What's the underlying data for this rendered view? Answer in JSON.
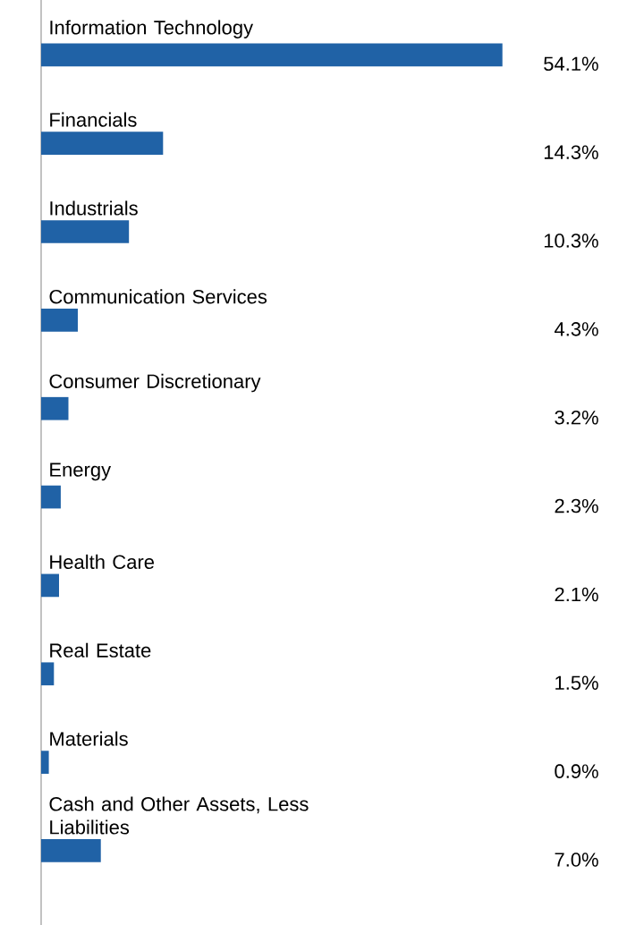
{
  "chart_data": {
    "type": "bar",
    "orientation": "horizontal",
    "categories": [
      "Information Technology",
      "Financials",
      "Industrials",
      "Communication Services",
      "Consumer Discretionary",
      "Energy",
      "Health Care",
      "Real Estate",
      "Materials",
      "Cash and Other Assets, Less Liabilities"
    ],
    "values": [
      54.1,
      14.3,
      10.3,
      4.3,
      3.2,
      2.3,
      2.1,
      1.5,
      0.9,
      7.0
    ],
    "value_labels": [
      "54.1%",
      "14.3%",
      "10.3%",
      "4.3%",
      "3.2%",
      "2.3%",
      "2.1%",
      "1.5%",
      "0.9%",
      "7.0%"
    ],
    "color": "#2062a6"
  }
}
